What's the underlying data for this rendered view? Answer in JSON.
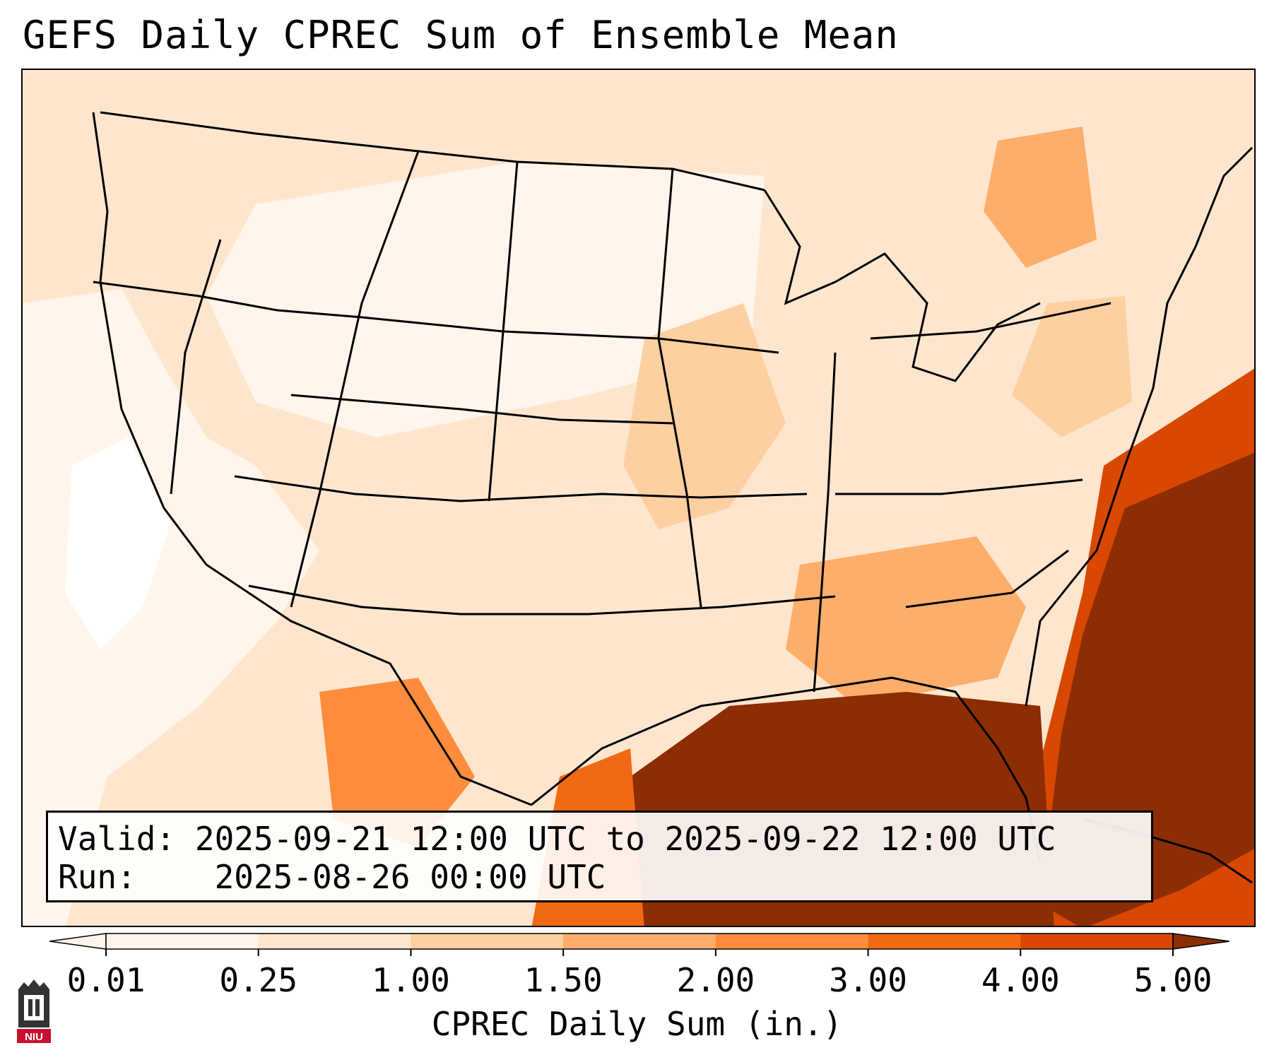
{
  "title": "GEFS Daily CPREC Sum of Ensemble Mean",
  "info": {
    "valid_label": "Valid:",
    "valid_value": "2025-09-21 12:00 UTC to 2025-09-22 12:00 UTC",
    "run_label": "Run:",
    "run_value": "2025-08-26 00:00 UTC"
  },
  "colorbar": {
    "label": "CPREC Daily Sum (in.)",
    "ticks": [
      "0.01",
      "0.25",
      "1.00",
      "1.50",
      "2.00",
      "3.00",
      "4.00",
      "5.00"
    ],
    "colors": [
      "#fff5eb",
      "#fee6ce",
      "#fdd0a2",
      "#fdae6b",
      "#fd8d3c",
      "#f16913",
      "#d94801",
      "#8c2d04"
    ]
  },
  "logo": {
    "text": "NIU",
    "colors": {
      "tower": "#333333",
      "banner": "#c8102e"
    }
  }
}
